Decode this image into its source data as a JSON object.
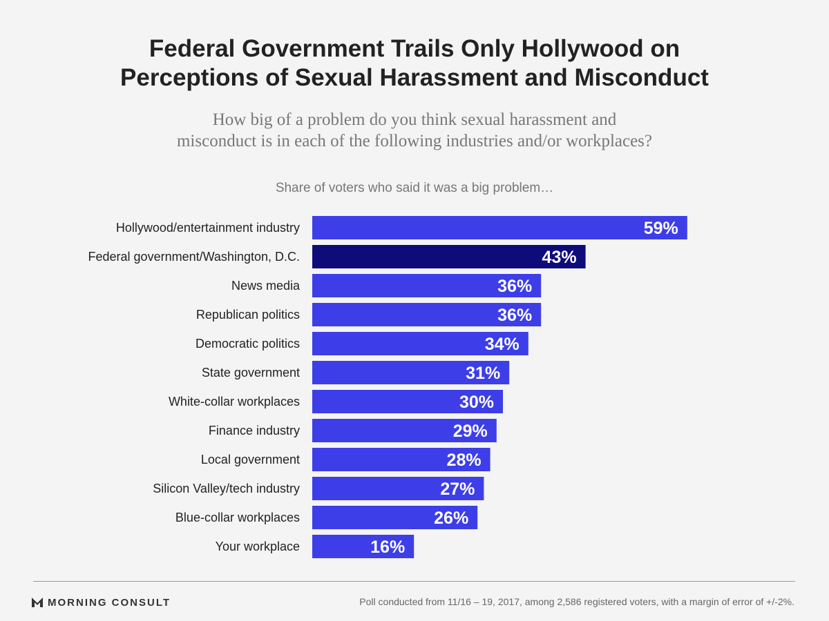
{
  "title_line1": "Federal Government Trails Only Hollywood on",
  "title_line2": "Perceptions of Sexual Harassment and Misconduct",
  "subtitle_line1": "How big of a problem do you think sexual harassment and",
  "subtitle_line2": "misconduct is in each of the following industries and/or workplaces?",
  "caption": "Share of voters who said it was a big problem…",
  "brand": "MORNING CONSULT",
  "footnote": "Poll conducted from 11/16 – 19, 2017, among 2,586 registered voters, with a margin of error of +/-2%.",
  "colors": {
    "bar": "#3d3ee8",
    "highlight": "#0e0c7a",
    "label_text": "#ffffff",
    "category_text": "#222222"
  },
  "chart_data": {
    "type": "bar",
    "orientation": "horizontal",
    "categories": [
      "Hollywood/entertainment industry",
      "Federal government/Washington, D.C.",
      "News media",
      "Republican politics",
      "Democratic politics",
      "State government",
      "White-collar workplaces",
      "Finance industry",
      "Local government",
      "Silicon Valley/tech industry",
      "Blue-collar workplaces",
      "Your workplace"
    ],
    "values": [
      59,
      43,
      36,
      36,
      34,
      31,
      30,
      29,
      28,
      27,
      26,
      16
    ],
    "value_labels": [
      "59%",
      "43%",
      "36%",
      "36%",
      "34%",
      "31%",
      "30%",
      "29%",
      "28%",
      "27%",
      "26%",
      "16%"
    ],
    "highlight_category": "Federal government/Washington, D.C.",
    "xlim": [
      0,
      100
    ],
    "grid": false,
    "legend": "none"
  }
}
